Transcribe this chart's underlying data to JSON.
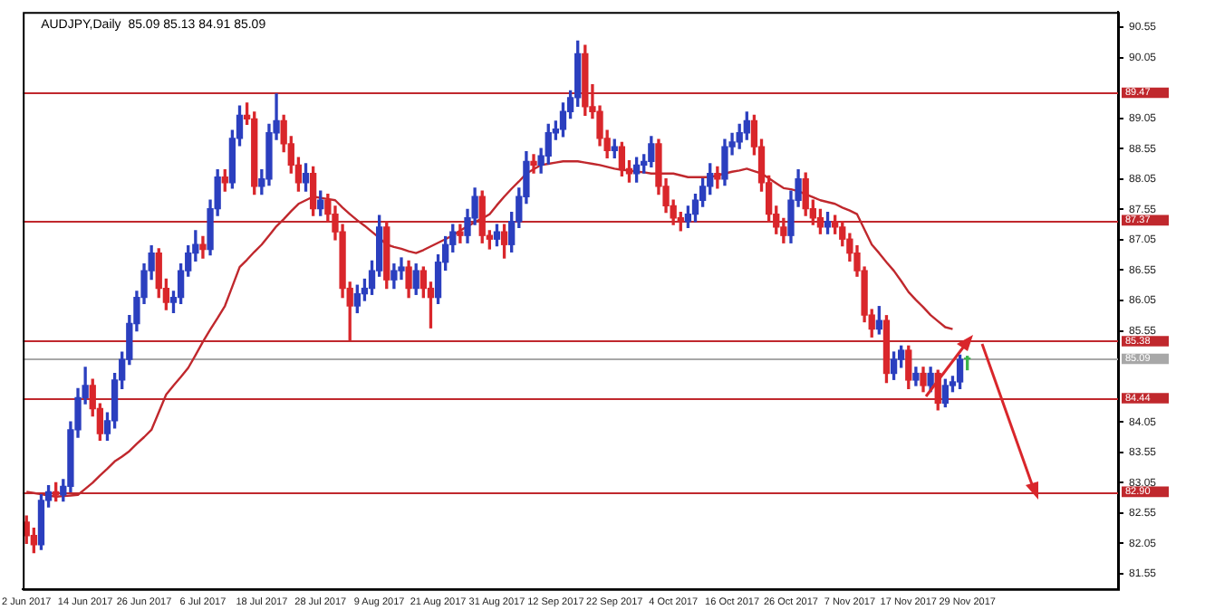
{
  "chart_data": {
    "type": "candlestick",
    "title": "AUDJPY,Daily  85.09 85.13 84.91 85.09",
    "categories": [
      "2 Jun 2017",
      null,
      null,
      null,
      null,
      null,
      null,
      null,
      "14 Jun 2017",
      null,
      null,
      null,
      null,
      null,
      null,
      null,
      "26 Jun 2017",
      null,
      null,
      null,
      null,
      null,
      null,
      null,
      "6 Jul 2017",
      null,
      null,
      null,
      null,
      null,
      null,
      null,
      "18 Jul 2017",
      null,
      null,
      null,
      null,
      null,
      null,
      null,
      "28 Jul 2017",
      null,
      null,
      null,
      null,
      null,
      null,
      null,
      "9 Aug 2017",
      null,
      null,
      null,
      null,
      null,
      null,
      null,
      "21 Aug 2017",
      null,
      null,
      null,
      null,
      null,
      null,
      null,
      "31 Aug 2017",
      null,
      null,
      null,
      null,
      null,
      null,
      null,
      "12 Sep 2017",
      null,
      null,
      null,
      null,
      null,
      null,
      null,
      "22 Sep 2017",
      null,
      null,
      null,
      null,
      null,
      null,
      null,
      "4 Oct 2017",
      null,
      null,
      null,
      null,
      null,
      null,
      null,
      "16 Oct 2017",
      null,
      null,
      null,
      null,
      null,
      null,
      null,
      "26 Oct 2017",
      null,
      null,
      null,
      null,
      null,
      null,
      null,
      "7 Nov 2017",
      null,
      null,
      null,
      null,
      null,
      null,
      null,
      "17 Nov 2017",
      null,
      null,
      null,
      null,
      null,
      null,
      null,
      "29 Nov 2017",
      null,
      null,
      null,
      null,
      null,
      null,
      null,
      null,
      null,
      null,
      null,
      null,
      null,
      null,
      null,
      null,
      null,
      null,
      null,
      null
    ],
    "ohlc": [
      [
        82.4,
        82.5,
        82.05,
        82.18
      ],
      [
        82.18,
        82.3,
        81.9,
        82.03
      ],
      [
        82.03,
        82.85,
        81.95,
        82.76
      ],
      [
        82.76,
        83.0,
        82.65,
        82.9
      ],
      [
        82.9,
        83.05,
        82.75,
        82.85
      ],
      [
        82.85,
        83.1,
        82.75,
        82.99
      ],
      [
        82.99,
        84.05,
        82.9,
        83.92
      ],
      [
        83.92,
        84.6,
        83.8,
        84.45
      ],
      [
        84.45,
        84.95,
        84.35,
        84.65
      ],
      [
        84.65,
        84.75,
        84.15,
        84.27
      ],
      [
        84.27,
        84.35,
        83.75,
        83.86
      ],
      [
        83.86,
        84.2,
        83.75,
        84.07
      ],
      [
        84.07,
        84.85,
        83.95,
        84.74
      ],
      [
        84.74,
        85.2,
        84.6,
        85.08
      ],
      [
        85.08,
        85.8,
        85.0,
        85.67
      ],
      [
        85.67,
        86.2,
        85.55,
        86.1
      ],
      [
        86.1,
        86.65,
        86.0,
        86.54
      ],
      [
        86.54,
        86.95,
        86.4,
        86.83
      ],
      [
        86.83,
        86.9,
        86.1,
        86.25
      ],
      [
        86.25,
        86.4,
        85.9,
        86.02
      ],
      [
        86.02,
        86.2,
        85.85,
        86.1
      ],
      [
        86.1,
        86.65,
        86.0,
        86.54
      ],
      [
        86.54,
        86.95,
        86.45,
        86.83
      ],
      [
        86.83,
        87.2,
        86.7,
        86.97
      ],
      [
        86.97,
        87.1,
        86.75,
        86.89
      ],
      [
        86.89,
        87.7,
        86.8,
        87.56
      ],
      [
        87.56,
        88.2,
        87.45,
        88.08
      ],
      [
        88.08,
        88.2,
        87.85,
        87.99
      ],
      [
        87.99,
        88.85,
        87.9,
        88.72
      ],
      [
        88.72,
        89.25,
        88.6,
        89.1
      ],
      [
        89.1,
        89.3,
        88.95,
        89.04
      ],
      [
        89.04,
        89.15,
        87.8,
        87.93
      ],
      [
        87.93,
        88.2,
        87.8,
        88.05
      ],
      [
        88.05,
        88.95,
        87.95,
        88.81
      ],
      [
        88.81,
        89.45,
        88.7,
        89.01
      ],
      [
        89.01,
        89.1,
        88.5,
        88.63
      ],
      [
        88.63,
        88.75,
        88.15,
        88.28
      ],
      [
        88.28,
        88.4,
        87.85,
        87.99
      ],
      [
        87.99,
        88.3,
        87.85,
        88.14
      ],
      [
        88.14,
        88.25,
        87.45,
        87.56
      ],
      [
        87.56,
        87.85,
        87.45,
        87.7
      ],
      [
        87.7,
        87.8,
        87.35,
        87.47
      ],
      [
        87.47,
        87.6,
        87.05,
        87.18
      ],
      [
        87.18,
        87.3,
        86.1,
        86.25
      ],
      [
        86.25,
        86.35,
        85.4,
        85.96
      ],
      [
        85.96,
        86.3,
        85.85,
        86.16
      ],
      [
        86.16,
        86.4,
        86.05,
        86.25
      ],
      [
        86.25,
        86.7,
        86.15,
        86.54
      ],
      [
        86.54,
        87.45,
        86.45,
        87.26
      ],
      [
        87.26,
        87.35,
        86.25,
        86.39
      ],
      [
        86.39,
        86.65,
        86.25,
        86.54
      ],
      [
        86.54,
        86.75,
        86.4,
        86.6
      ],
      [
        86.6,
        86.7,
        86.1,
        86.25
      ],
      [
        86.25,
        86.65,
        86.15,
        86.54
      ],
      [
        86.54,
        86.6,
        86.1,
        86.25
      ],
      [
        86.25,
        86.35,
        85.6,
        86.1
      ],
      [
        86.1,
        86.8,
        86.0,
        86.68
      ],
      [
        86.68,
        87.1,
        86.55,
        86.97
      ],
      [
        86.97,
        87.3,
        86.85,
        87.18
      ],
      [
        87.18,
        87.3,
        87.0,
        87.12
      ],
      [
        87.12,
        87.55,
        87.0,
        87.41
      ],
      [
        87.41,
        87.9,
        87.3,
        87.76
      ],
      [
        87.76,
        87.85,
        87.0,
        87.12
      ],
      [
        87.12,
        87.2,
        86.9,
        87.06
      ],
      [
        87.06,
        87.3,
        86.95,
        87.18
      ],
      [
        87.18,
        87.3,
        86.75,
        86.97
      ],
      [
        86.97,
        87.5,
        86.85,
        87.35
      ],
      [
        87.35,
        87.9,
        87.25,
        87.76
      ],
      [
        87.76,
        88.5,
        87.65,
        88.34
      ],
      [
        88.34,
        88.45,
        88.15,
        88.28
      ],
      [
        88.28,
        88.55,
        88.15,
        88.43
      ],
      [
        88.43,
        88.95,
        88.3,
        88.81
      ],
      [
        88.81,
        89.0,
        88.7,
        88.87
      ],
      [
        88.87,
        89.3,
        88.75,
        89.16
      ],
      [
        89.16,
        89.5,
        89.05,
        89.39
      ],
      [
        89.39,
        90.32,
        89.25,
        90.11
      ],
      [
        90.11,
        90.25,
        89.1,
        89.24
      ],
      [
        89.24,
        89.6,
        89.05,
        89.16
      ],
      [
        89.16,
        89.25,
        88.6,
        88.72
      ],
      [
        88.72,
        88.85,
        88.4,
        88.52
      ],
      [
        88.52,
        88.7,
        88.4,
        88.58
      ],
      [
        88.58,
        88.65,
        88.1,
        88.22
      ],
      [
        88.22,
        88.35,
        88.0,
        88.14
      ],
      [
        88.14,
        88.4,
        88.0,
        88.28
      ],
      [
        88.28,
        88.45,
        88.15,
        88.34
      ],
      [
        88.34,
        88.75,
        88.25,
        88.63
      ],
      [
        88.63,
        88.7,
        87.8,
        87.93
      ],
      [
        87.93,
        88.05,
        87.5,
        87.61
      ],
      [
        87.61,
        87.7,
        87.3,
        87.41
      ],
      [
        87.41,
        87.5,
        87.2,
        87.35
      ],
      [
        87.35,
        87.6,
        87.25,
        87.47
      ],
      [
        87.47,
        87.8,
        87.35,
        87.7
      ],
      [
        87.7,
        88.05,
        87.6,
        87.93
      ],
      [
        87.93,
        88.3,
        87.8,
        88.14
      ],
      [
        88.14,
        88.25,
        87.9,
        88.05
      ],
      [
        88.05,
        88.7,
        87.95,
        88.58
      ],
      [
        88.58,
        88.8,
        88.45,
        88.66
      ],
      [
        88.66,
        88.95,
        88.55,
        88.81
      ],
      [
        88.81,
        89.15,
        88.7,
        89.01
      ],
      [
        89.01,
        89.1,
        88.45,
        88.58
      ],
      [
        88.58,
        88.7,
        87.85,
        87.99
      ],
      [
        87.99,
        88.1,
        87.35,
        87.47
      ],
      [
        87.47,
        87.6,
        87.15,
        87.26
      ],
      [
        87.26,
        87.4,
        87.0,
        87.12
      ],
      [
        87.12,
        87.85,
        87.0,
        87.7
      ],
      [
        87.7,
        88.2,
        87.6,
        88.05
      ],
      [
        88.05,
        88.15,
        87.45,
        87.56
      ],
      [
        87.56,
        87.7,
        87.3,
        87.41
      ],
      [
        87.41,
        87.55,
        87.15,
        87.26
      ],
      [
        87.26,
        87.5,
        87.15,
        87.35
      ],
      [
        87.35,
        87.45,
        87.15,
        87.26
      ],
      [
        87.26,
        87.35,
        86.95,
        87.06
      ],
      [
        87.06,
        87.15,
        86.7,
        86.83
      ],
      [
        86.83,
        86.95,
        86.45,
        86.54
      ],
      [
        86.54,
        86.6,
        85.7,
        85.81
      ],
      [
        85.81,
        85.9,
        85.45,
        85.58
      ],
      [
        85.58,
        85.95,
        85.5,
        85.72
      ],
      [
        85.72,
        85.8,
        84.7,
        84.85
      ],
      [
        84.85,
        85.2,
        84.75,
        85.08
      ],
      [
        85.08,
        85.3,
        84.95,
        85.23
      ],
      [
        85.23,
        85.3,
        84.6,
        84.74
      ],
      [
        84.74,
        84.95,
        84.65,
        84.85
      ],
      [
        84.85,
        84.95,
        84.55,
        84.65
      ],
      [
        84.65,
        84.95,
        84.55,
        84.85
      ],
      [
        84.85,
        84.9,
        84.25,
        84.36
      ],
      [
        84.36,
        84.75,
        84.3,
        84.65
      ],
      [
        84.65,
        84.8,
        84.55,
        84.71
      ],
      [
        84.71,
        85.15,
        84.6,
        85.08
      ],
      [
        85.09,
        85.13,
        84.91,
        85.09
      ],
      null,
      null,
      null,
      null,
      null,
      null,
      null,
      null,
      null,
      null,
      null,
      null,
      null,
      null,
      null,
      null,
      null,
      null,
      null,
      null
    ],
    "colors": [
      "#d9262b",
      "#d9262b",
      "#2b3fbf",
      "#2b3fbf",
      "#d9262b",
      "#2b3fbf",
      "#2b3fbf",
      "#2b3fbf",
      "#2b3fbf",
      "#d9262b",
      "#d9262b",
      "#2b3fbf",
      "#2b3fbf",
      "#2b3fbf",
      "#2b3fbf",
      "#2b3fbf",
      "#2b3fbf",
      "#2b3fbf",
      "#d9262b",
      "#d9262b",
      "#2b3fbf",
      "#2b3fbf",
      "#2b3fbf",
      "#2b3fbf",
      "#d9262b",
      "#2b3fbf",
      "#2b3fbf",
      "#d9262b",
      "#2b3fbf",
      "#2b3fbf",
      "#d9262b",
      "#d9262b",
      "#2b3fbf",
      "#2b3fbf",
      "#2b3fbf",
      "#d9262b",
      "#d9262b",
      "#d9262b",
      "#2b3fbf",
      "#d9262b",
      "#2b3fbf",
      "#d9262b",
      "#d9262b",
      "#d9262b",
      "#d9262b",
      "#2b3fbf",
      "#2b3fbf",
      "#2b3fbf",
      "#2b3fbf",
      "#d9262b",
      "#2b3fbf",
      "#2b3fbf",
      "#d9262b",
      "#2b3fbf",
      "#d9262b",
      "#d9262b",
      "#2b3fbf",
      "#2b3fbf",
      "#2b3fbf",
      "#d9262b",
      "#2b3fbf",
      "#2b3fbf",
      "#d9262b",
      "#d9262b",
      "#2b3fbf",
      "#d9262b",
      "#2b3fbf",
      "#2b3fbf",
      "#2b3fbf",
      "#d9262b",
      "#2b3fbf",
      "#2b3fbf",
      "#2b3fbf",
      "#2b3fbf",
      "#2b3fbf",
      "#2b3fbf",
      "#d9262b",
      "#d9262b",
      "#d9262b",
      "#d9262b",
      "#2b3fbf",
      "#d9262b",
      "#d9262b",
      "#2b3fbf",
      "#2b3fbf",
      "#2b3fbf",
      "#d9262b",
      "#d9262b",
      "#d9262b",
      "#d9262b",
      "#2b3fbf",
      "#2b3fbf",
      "#2b3fbf",
      "#2b3fbf",
      "#d9262b",
      "#2b3fbf",
      "#2b3fbf",
      "#2b3fbf",
      "#2b3fbf",
      "#d9262b",
      "#d9262b",
      "#d9262b",
      "#d9262b",
      "#d9262b",
      "#2b3fbf",
      "#2b3fbf",
      "#d9262b",
      "#d9262b",
      "#d9262b",
      "#2b3fbf",
      "#d9262b",
      "#d9262b",
      "#d9262b",
      "#d9262b",
      "#d9262b",
      "#d9262b",
      "#2b3fbf",
      "#d9262b",
      "#2b3fbf",
      "#2b3fbf",
      "#d9262b",
      "#2b3fbf",
      "#d9262b",
      "#2b3fbf",
      "#d9262b",
      "#2b3fbf",
      "#2b3fbf",
      "#2b3fbf",
      "#3cb44b",
      null,
      null,
      null,
      null,
      null,
      null,
      null,
      null,
      null,
      null,
      null,
      null,
      null,
      null,
      null,
      null,
      null,
      null,
      null,
      null
    ],
    "series": [
      {
        "type": "line",
        "color": "#c0282d",
        "values": [
          82.9,
          82.88,
          82.86,
          82.84,
          82.82,
          82.83,
          82.84,
          82.85,
          82.95,
          83.05,
          83.17,
          83.28,
          83.4,
          83.48,
          83.57,
          83.69,
          83.8,
          83.92,
          84.21,
          84.5,
          84.65,
          84.79,
          84.94,
          85.15,
          85.37,
          85.57,
          85.76,
          85.96,
          86.28,
          86.6,
          86.72,
          86.85,
          86.97,
          87.12,
          87.27,
          87.39,
          87.52,
          87.64,
          87.7,
          87.76,
          87.74,
          87.72,
          87.7,
          87.58,
          87.47,
          87.37,
          87.28,
          87.18,
          87.08,
          86.97,
          86.93,
          86.9,
          86.86,
          86.83,
          86.88,
          86.94,
          87.0,
          87.06,
          87.12,
          87.2,
          87.27,
          87.34,
          87.4,
          87.47,
          87.62,
          87.76,
          87.89,
          88.01,
          88.14,
          88.21,
          88.28,
          88.3,
          88.32,
          88.34,
          88.34,
          88.34,
          88.32,
          88.3,
          88.28,
          88.25,
          88.22,
          88.2,
          88.19,
          88.17,
          88.16,
          88.14,
          88.14,
          88.14,
          88.14,
          88.11,
          88.08,
          88.08,
          88.08,
          88.08,
          88.11,
          88.14,
          88.17,
          88.19,
          88.22,
          88.18,
          88.14,
          88.06,
          87.98,
          87.9,
          87.88,
          87.85,
          87.8,
          87.75,
          87.7,
          87.67,
          87.64,
          87.58,
          87.53,
          87.47,
          87.22,
          86.97,
          86.83,
          86.68,
          86.54,
          86.37,
          86.19,
          86.06,
          85.94,
          85.81,
          85.71,
          85.61,
          85.58,
          null,
          null,
          null,
          null,
          null,
          null,
          null,
          null,
          null,
          null,
          null,
          null,
          null,
          null,
          null,
          null,
          null,
          null,
          null,
          null,
          null,
          null
        ]
      }
    ],
    "ylim": [
      81.3,
      90.8
    ],
    "yticks": [
      81.55,
      82.05,
      82.55,
      83.05,
      83.55,
      84.05,
      85.55,
      86.05,
      86.55,
      87.05,
      87.55,
      88.05,
      88.55,
      89.05,
      90.05,
      90.55
    ],
    "ref_lines": [
      {
        "axis": "y",
        "value": 89.47,
        "label": "89.47",
        "color": "#c0282d"
      },
      {
        "axis": "y",
        "value": 87.37,
        "label": "87.37",
        "color": "#c0282d"
      },
      {
        "axis": "y",
        "value": 85.38,
        "label": "85.38",
        "color": "#c0282d"
      },
      {
        "axis": "y",
        "value": 85.09,
        "label": "85.09",
        "color": "#a8a8a8"
      },
      {
        "axis": "y",
        "value": 84.44,
        "label": "84.44",
        "color": "#c0282d"
      },
      {
        "axis": "y",
        "value": 82.9,
        "label": "82.90",
        "color": "#c0282d"
      }
    ],
    "grid": false,
    "legend": false
  }
}
